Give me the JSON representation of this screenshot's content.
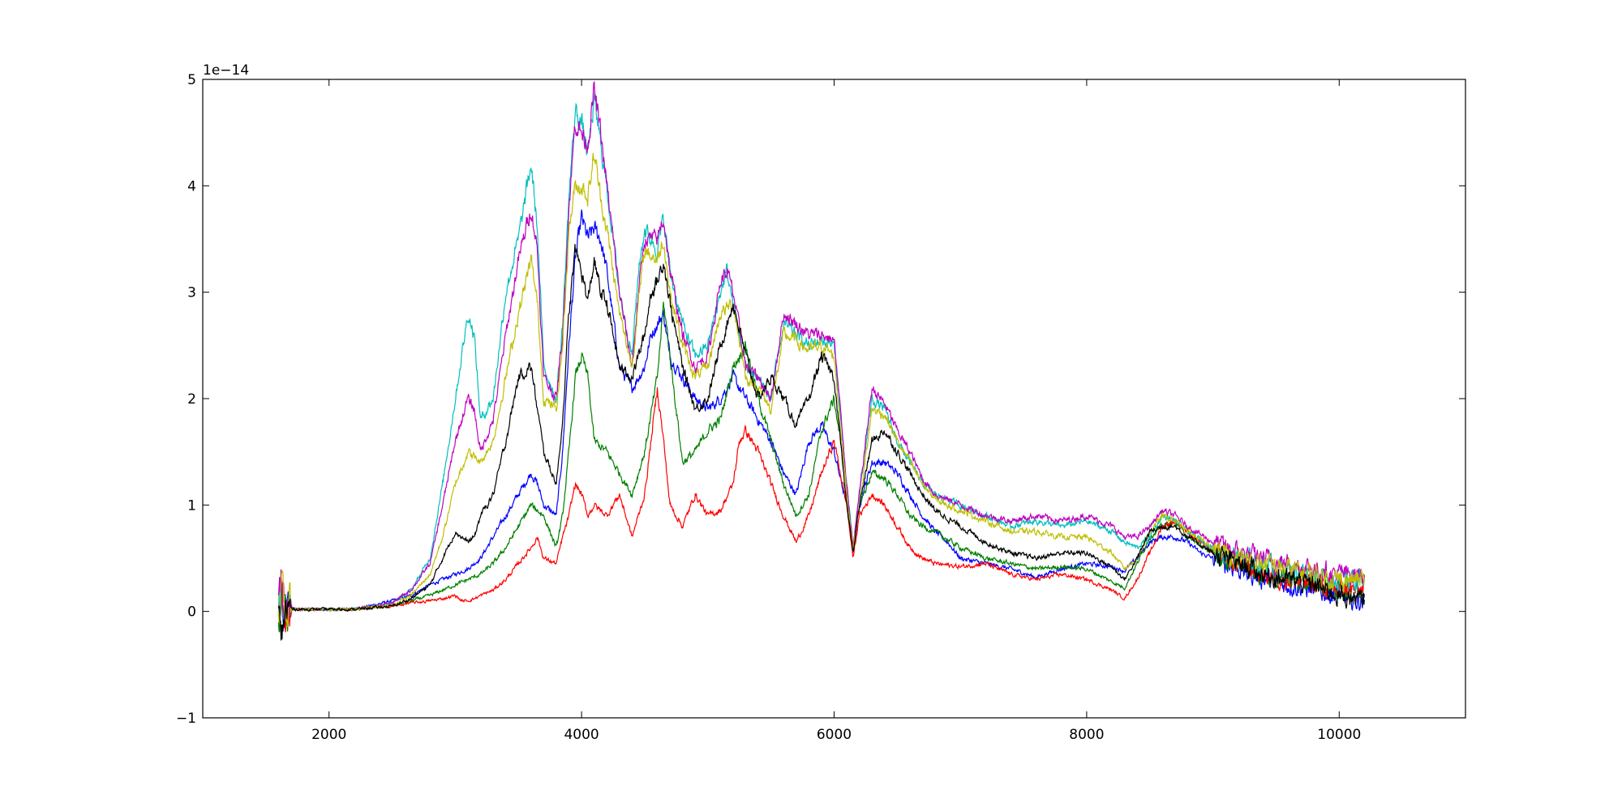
{
  "chart_data": {
    "type": "line",
    "title": "",
    "xlabel": "",
    "ylabel": "",
    "y_offset_label": "1e−14",
    "xlim": [
      1000,
      11000
    ],
    "ylim": [
      -1,
      5
    ],
    "x_ticks": [
      2000,
      4000,
      6000,
      8000,
      10000
    ],
    "x_tick_labels": [
      "2000",
      "4000",
      "6000",
      "8000",
      "10000"
    ],
    "y_ticks": [
      -1,
      0,
      1,
      2,
      3,
      4,
      5
    ],
    "y_tick_labels": [
      "−1",
      "0",
      "1",
      "2",
      "3",
      "4",
      "5"
    ],
    "grid": false,
    "legend": "none",
    "noise_level": 0.07,
    "series": [
      {
        "color": "#0000ff",
        "x": [
          1600,
          1620,
          1650,
          1700,
          1900,
          2200,
          2500,
          2650,
          2800,
          2900,
          3000,
          3100,
          3200,
          3300,
          3400,
          3500,
          3600,
          3650,
          3700,
          3800,
          3850,
          3900,
          3950,
          4000,
          4050,
          4100,
          4150,
          4200,
          4300,
          4400,
          4500,
          4550,
          4600,
          4650,
          4700,
          4800,
          4900,
          5000,
          5100,
          5200,
          5300,
          5400,
          5500,
          5600,
          5700,
          5800,
          5900,
          6000,
          6100,
          6150,
          6200,
          6300,
          6400,
          6500,
          6600,
          6700,
          6800,
          6900,
          7000,
          7200,
          7400,
          7600,
          7800,
          8000,
          8200,
          8300,
          8400,
          8500,
          8600,
          8700,
          8800,
          8900,
          9000,
          9200,
          9400,
          9600,
          9800,
          10000,
          10100,
          10200
        ],
        "y": [
          0,
          0.2,
          0,
          0.02,
          0.02,
          0.02,
          0.1,
          0.15,
          0.25,
          0.3,
          0.35,
          0.4,
          0.5,
          0.7,
          0.9,
          1.1,
          1.3,
          1.2,
          1.0,
          0.9,
          1.5,
          2.5,
          3.3,
          3.7,
          3.5,
          3.6,
          3.5,
          3.2,
          2.3,
          2.1,
          2.3,
          2.6,
          2.7,
          2.8,
          2.4,
          2.2,
          2.0,
          1.9,
          2.0,
          2.2,
          2.0,
          1.8,
          1.6,
          1.3,
          1.1,
          1.6,
          1.75,
          1.5,
          1.0,
          0.55,
          1.0,
          1.4,
          1.4,
          1.3,
          1.1,
          0.9,
          0.75,
          0.65,
          0.5,
          0.45,
          0.4,
          0.32,
          0.4,
          0.45,
          0.42,
          0.38,
          0.5,
          0.65,
          0.7,
          0.7,
          0.65,
          0.55,
          0.5,
          0.4,
          0.3,
          0.25,
          0.2,
          0.15,
          0.1,
          0.1
        ]
      },
      {
        "color": "#008000",
        "x": [
          1600,
          1620,
          1650,
          1700,
          1900,
          2200,
          2500,
          2650,
          2800,
          2900,
          3000,
          3100,
          3200,
          3300,
          3400,
          3500,
          3600,
          3700,
          3800,
          3850,
          3900,
          3950,
          4000,
          4050,
          4100,
          4200,
          4300,
          4400,
          4500,
          4600,
          4650,
          4700,
          4800,
          4900,
          5000,
          5100,
          5200,
          5300,
          5400,
          5500,
          5600,
          5700,
          5800,
          5900,
          6000,
          6100,
          6150,
          6200,
          6300,
          6400,
          6500,
          6600,
          6700,
          6800,
          7000,
          7200,
          7400,
          7600,
          7800,
          8000,
          8200,
          8300,
          8400,
          8500,
          8600,
          8700,
          8800,
          9000,
          9200,
          9400,
          9600,
          9800,
          10000,
          10200
        ],
        "y": [
          0,
          0.15,
          0,
          0.02,
          0.02,
          0.02,
          0.05,
          0.1,
          0.15,
          0.2,
          0.25,
          0.3,
          0.35,
          0.45,
          0.6,
          0.8,
          1.0,
          0.9,
          0.6,
          0.9,
          1.5,
          2.2,
          2.4,
          2.2,
          1.6,
          1.5,
          1.3,
          1.1,
          1.5,
          2.2,
          2.9,
          2.4,
          1.4,
          1.5,
          1.7,
          1.8,
          2.3,
          2.5,
          2.0,
          1.6,
          1.2,
          0.9,
          1.1,
          1.7,
          2.0,
          1.2,
          0.6,
          1.0,
          1.3,
          1.25,
          1.1,
          0.9,
          0.8,
          0.75,
          0.6,
          0.5,
          0.45,
          0.4,
          0.42,
          0.4,
          0.28,
          0.22,
          0.45,
          0.7,
          0.8,
          0.85,
          0.7,
          0.55,
          0.45,
          0.35,
          0.3,
          0.25,
          0.2,
          0.15
        ]
      },
      {
        "color": "#ff0000",
        "x": [
          1600,
          1620,
          1650,
          1700,
          1900,
          2200,
          2500,
          2650,
          2800,
          2900,
          3000,
          3050,
          3100,
          3150,
          3200,
          3300,
          3400,
          3500,
          3600,
          3650,
          3700,
          3800,
          3850,
          3900,
          3950,
          4000,
          4050,
          4100,
          4200,
          4300,
          4400,
          4500,
          4550,
          4600,
          4650,
          4700,
          4800,
          4900,
          5000,
          5100,
          5200,
          5250,
          5300,
          5400,
          5500,
          5600,
          5700,
          5800,
          5900,
          6000,
          6100,
          6150,
          6200,
          6300,
          6400,
          6500,
          6600,
          6700,
          6800,
          7000,
          7200,
          7400,
          7600,
          7800,
          8000,
          8200,
          8300,
          8400,
          8500,
          8600,
          8700,
          8800,
          9000,
          9200,
          9400,
          9600,
          9800,
          10000,
          10200
        ],
        "y": [
          0,
          0.3,
          0,
          0.02,
          0.02,
          0.02,
          0.05,
          0.08,
          0.1,
          0.12,
          0.15,
          0.1,
          0.1,
          0.12,
          0.15,
          0.2,
          0.3,
          0.45,
          0.6,
          0.7,
          0.5,
          0.45,
          0.7,
          0.9,
          1.2,
          1.1,
          0.9,
          1.0,
          0.9,
          1.1,
          0.7,
          1.1,
          1.6,
          2.1,
          1.6,
          1.0,
          0.8,
          1.1,
          0.9,
          0.95,
          1.2,
          1.6,
          1.7,
          1.5,
          1.2,
          0.9,
          0.65,
          0.9,
          1.3,
          1.6,
          1.0,
          0.5,
          0.9,
          1.1,
          1.0,
          0.8,
          0.6,
          0.5,
          0.45,
          0.42,
          0.45,
          0.35,
          0.3,
          0.35,
          0.3,
          0.2,
          0.12,
          0.3,
          0.55,
          0.8,
          0.85,
          0.75,
          0.55,
          0.45,
          0.35,
          0.3,
          0.25,
          0.2,
          0.2
        ]
      },
      {
        "color": "#00bfbf",
        "x": [
          1600,
          1620,
          1650,
          1700,
          1900,
          2200,
          2500,
          2650,
          2800,
          2900,
          3000,
          3100,
          3150,
          3200,
          3300,
          3400,
          3500,
          3600,
          3650,
          3700,
          3800,
          3850,
          3900,
          3950,
          4000,
          4050,
          4100,
          4150,
          4200,
          4300,
          4400,
          4450,
          4500,
          4600,
          4650,
          4700,
          4800,
          4900,
          5000,
          5100,
          5150,
          5200,
          5300,
          5400,
          5500,
          5600,
          5700,
          5800,
          5900,
          6000,
          6100,
          6150,
          6200,
          6300,
          6400,
          6500,
          6600,
          6700,
          6800,
          7000,
          7200,
          7400,
          7600,
          7800,
          8000,
          8200,
          8300,
          8400,
          8500,
          8600,
          8700,
          8800,
          9000,
          9200,
          9400,
          9600,
          9800,
          10000,
          10200
        ],
        "y": [
          0,
          0.2,
          0,
          0.02,
          0.02,
          0.02,
          0.08,
          0.2,
          0.5,
          1.2,
          2.0,
          2.8,
          2.6,
          1.8,
          2.0,
          3.0,
          3.5,
          4.2,
          3.6,
          2.3,
          2.0,
          2.7,
          3.9,
          4.7,
          4.6,
          4.3,
          4.8,
          4.4,
          4.0,
          3.0,
          2.4,
          3.2,
          3.6,
          3.4,
          3.7,
          3.2,
          2.7,
          2.4,
          2.5,
          3.0,
          3.2,
          2.9,
          2.3,
          2.2,
          2.0,
          2.7,
          2.6,
          2.5,
          2.55,
          2.5,
          1.2,
          0.6,
          1.1,
          2.0,
          1.9,
          1.6,
          1.4,
          1.2,
          1.1,
          1.0,
          0.9,
          0.8,
          0.85,
          0.8,
          0.85,
          0.75,
          0.65,
          0.6,
          0.7,
          0.9,
          0.85,
          0.75,
          0.6,
          0.5,
          0.45,
          0.4,
          0.35,
          0.3,
          0.3
        ]
      },
      {
        "color": "#bf00bf",
        "x": [
          1600,
          1620,
          1650,
          1700,
          1900,
          2200,
          2500,
          2650,
          2800,
          2900,
          3000,
          3100,
          3150,
          3200,
          3300,
          3400,
          3500,
          3600,
          3650,
          3700,
          3800,
          3850,
          3900,
          3950,
          4000,
          4050,
          4100,
          4150,
          4200,
          4300,
          4400,
          4450,
          4500,
          4600,
          4650,
          4700,
          4800,
          4900,
          5000,
          5100,
          5150,
          5200,
          5300,
          5400,
          5500,
          5600,
          5700,
          5800,
          5900,
          6000,
          6100,
          6150,
          6200,
          6300,
          6400,
          6500,
          6600,
          6700,
          6800,
          7000,
          7200,
          7400,
          7600,
          7800,
          8000,
          8200,
          8300,
          8400,
          8500,
          8600,
          8700,
          8800,
          9000,
          9200,
          9400,
          9600,
          9800,
          10000,
          10200
        ],
        "y": [
          0,
          0.2,
          0,
          0.02,
          0.02,
          0.02,
          0.08,
          0.2,
          0.45,
          1.0,
          1.6,
          2.0,
          1.9,
          1.5,
          1.8,
          2.6,
          3.3,
          3.8,
          3.4,
          2.2,
          2.0,
          2.6,
          3.8,
          4.6,
          4.5,
          4.4,
          4.9,
          4.5,
          4.0,
          3.0,
          2.3,
          3.0,
          3.5,
          3.5,
          3.7,
          3.2,
          2.6,
          2.3,
          2.4,
          3.1,
          3.2,
          3.0,
          2.3,
          2.2,
          2.0,
          2.8,
          2.7,
          2.6,
          2.6,
          2.55,
          1.2,
          0.6,
          1.1,
          2.1,
          1.95,
          1.7,
          1.5,
          1.25,
          1.1,
          1.0,
          0.9,
          0.85,
          0.9,
          0.85,
          0.9,
          0.8,
          0.7,
          0.7,
          0.8,
          0.95,
          0.9,
          0.8,
          0.65,
          0.55,
          0.5,
          0.45,
          0.4,
          0.35,
          0.35
        ]
      },
      {
        "color": "#bfbf00",
        "x": [
          1600,
          1620,
          1650,
          1700,
          1900,
          2200,
          2500,
          2650,
          2800,
          2900,
          3000,
          3100,
          3200,
          3300,
          3400,
          3500,
          3600,
          3650,
          3700,
          3800,
          3850,
          3900,
          3950,
          4000,
          4050,
          4100,
          4150,
          4200,
          4300,
          4400,
          4450,
          4500,
          4600,
          4650,
          4700,
          4800,
          4900,
          5000,
          5100,
          5200,
          5300,
          5400,
          5500,
          5600,
          5700,
          5800,
          5900,
          6000,
          6100,
          6150,
          6200,
          6300,
          6400,
          6500,
          6600,
          6700,
          6800,
          7000,
          7200,
          7400,
          7600,
          7800,
          8000,
          8200,
          8300,
          8400,
          8500,
          8600,
          8700,
          8800,
          9000,
          9200,
          9400,
          9600,
          9800,
          10000,
          10200
        ],
        "y": [
          0,
          0.2,
          0,
          0.02,
          0.02,
          0.02,
          0.06,
          0.15,
          0.35,
          0.7,
          1.2,
          1.5,
          1.4,
          1.6,
          2.2,
          2.8,
          3.3,
          2.9,
          2.0,
          1.9,
          2.5,
          3.6,
          4.0,
          4.0,
          3.9,
          4.3,
          3.9,
          3.6,
          2.8,
          2.3,
          2.9,
          3.4,
          3.3,
          3.5,
          3.0,
          2.5,
          2.2,
          2.3,
          2.8,
          2.9,
          2.2,
          2.1,
          1.9,
          2.6,
          2.55,
          2.45,
          2.5,
          2.4,
          1.1,
          0.6,
          1.0,
          1.9,
          1.85,
          1.6,
          1.4,
          1.2,
          1.05,
          0.95,
          0.85,
          0.75,
          0.75,
          0.7,
          0.7,
          0.55,
          0.4,
          0.5,
          0.75,
          0.9,
          0.85,
          0.75,
          0.6,
          0.5,
          0.45,
          0.4,
          0.35,
          0.3,
          0.3
        ]
      },
      {
        "color": "#000000",
        "x": [
          1600,
          1620,
          1650,
          1700,
          1900,
          2200,
          2500,
          2650,
          2800,
          2900,
          3000,
          3100,
          3150,
          3200,
          3300,
          3400,
          3500,
          3600,
          3650,
          3700,
          3800,
          3850,
          3900,
          3950,
          4000,
          4050,
          4100,
          4150,
          4200,
          4300,
          4400,
          4500,
          4550,
          4600,
          4650,
          4700,
          4800,
          4900,
          5000,
          5100,
          5200,
          5300,
          5400,
          5500,
          5600,
          5700,
          5800,
          5900,
          6000,
          6100,
          6150,
          6200,
          6300,
          6400,
          6500,
          6600,
          6700,
          6800,
          7000,
          7200,
          7400,
          7600,
          7800,
          8000,
          8200,
          8300,
          8400,
          8500,
          8600,
          8700,
          8800,
          9000,
          9200,
          9400,
          9600,
          9800,
          10000,
          10200
        ],
        "y": [
          0,
          -0.3,
          0,
          0.02,
          0.02,
          0.02,
          0.05,
          0.12,
          0.25,
          0.5,
          0.75,
          0.65,
          0.7,
          0.9,
          1.1,
          1.6,
          2.2,
          2.3,
          1.9,
          1.5,
          1.2,
          1.8,
          2.8,
          3.4,
          3.2,
          2.9,
          3.3,
          3.0,
          2.9,
          2.3,
          2.2,
          2.6,
          3.0,
          3.1,
          3.3,
          2.9,
          2.3,
          1.9,
          2.0,
          2.5,
          2.9,
          2.4,
          2.0,
          2.2,
          2.0,
          1.75,
          2.0,
          2.4,
          2.2,
          1.0,
          0.55,
          1.0,
          1.6,
          1.7,
          1.5,
          1.3,
          1.1,
          0.95,
          0.8,
          0.65,
          0.55,
          0.5,
          0.55,
          0.55,
          0.42,
          0.3,
          0.5,
          0.75,
          0.8,
          0.8,
          0.7,
          0.55,
          0.45,
          0.35,
          0.3,
          0.25,
          0.15,
          0.1
        ]
      }
    ]
  }
}
